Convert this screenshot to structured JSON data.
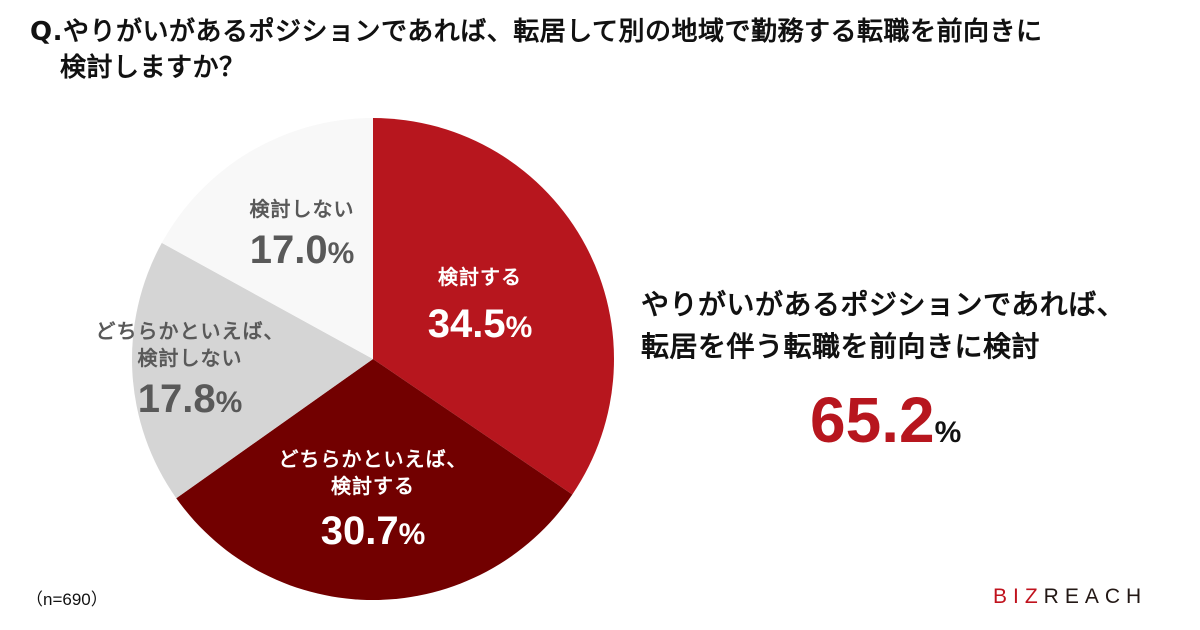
{
  "title": {
    "line1": "Q.やりがいがあるポジションであれば、転居して別の地域で勤務する転職を前向きに",
    "line2": "検討しますか？"
  },
  "chart_data": {
    "type": "pie",
    "title": "Q.やりがいがあるポジションであれば、転居して別の地域で勤務する転職を前向きに検討しますか？",
    "categories": [
      "検討する",
      "どちらかといえば、検討する",
      "どちらかといえば、検討しない",
      "検討しない"
    ],
    "values": [
      34.5,
      30.7,
      17.8,
      17.0
    ],
    "unit": "%",
    "start_angle": "12 o'clock, clockwise",
    "colors": [
      "#b7161e",
      "#720000",
      "#d5d5d5",
      "#f8f8f8"
    ],
    "sample_size": 690
  },
  "slices": [
    {
      "label_line1": "検討する",
      "label_line2": "",
      "value": "34.5",
      "pct": "%"
    },
    {
      "label_line1": "どちらかといえば、",
      "label_line2": "検討する",
      "value": "30.7",
      "pct": "%"
    },
    {
      "label_line1": "どちらかといえば、",
      "label_line2": "検討しない",
      "value": "17.8",
      "pct": "%"
    },
    {
      "label_line1": "検討しない",
      "label_line2": "",
      "value": "17.0",
      "pct": "%"
    }
  ],
  "summary": {
    "line1": "やりがいがあるポジションであれば、",
    "line2": "転居を伴う転職を前向きに検討",
    "value": "65.2",
    "pct": "%"
  },
  "footer": {
    "sample_note": "（n=690）",
    "logo_red": "BIZ",
    "logo_dark": "REACH"
  }
}
